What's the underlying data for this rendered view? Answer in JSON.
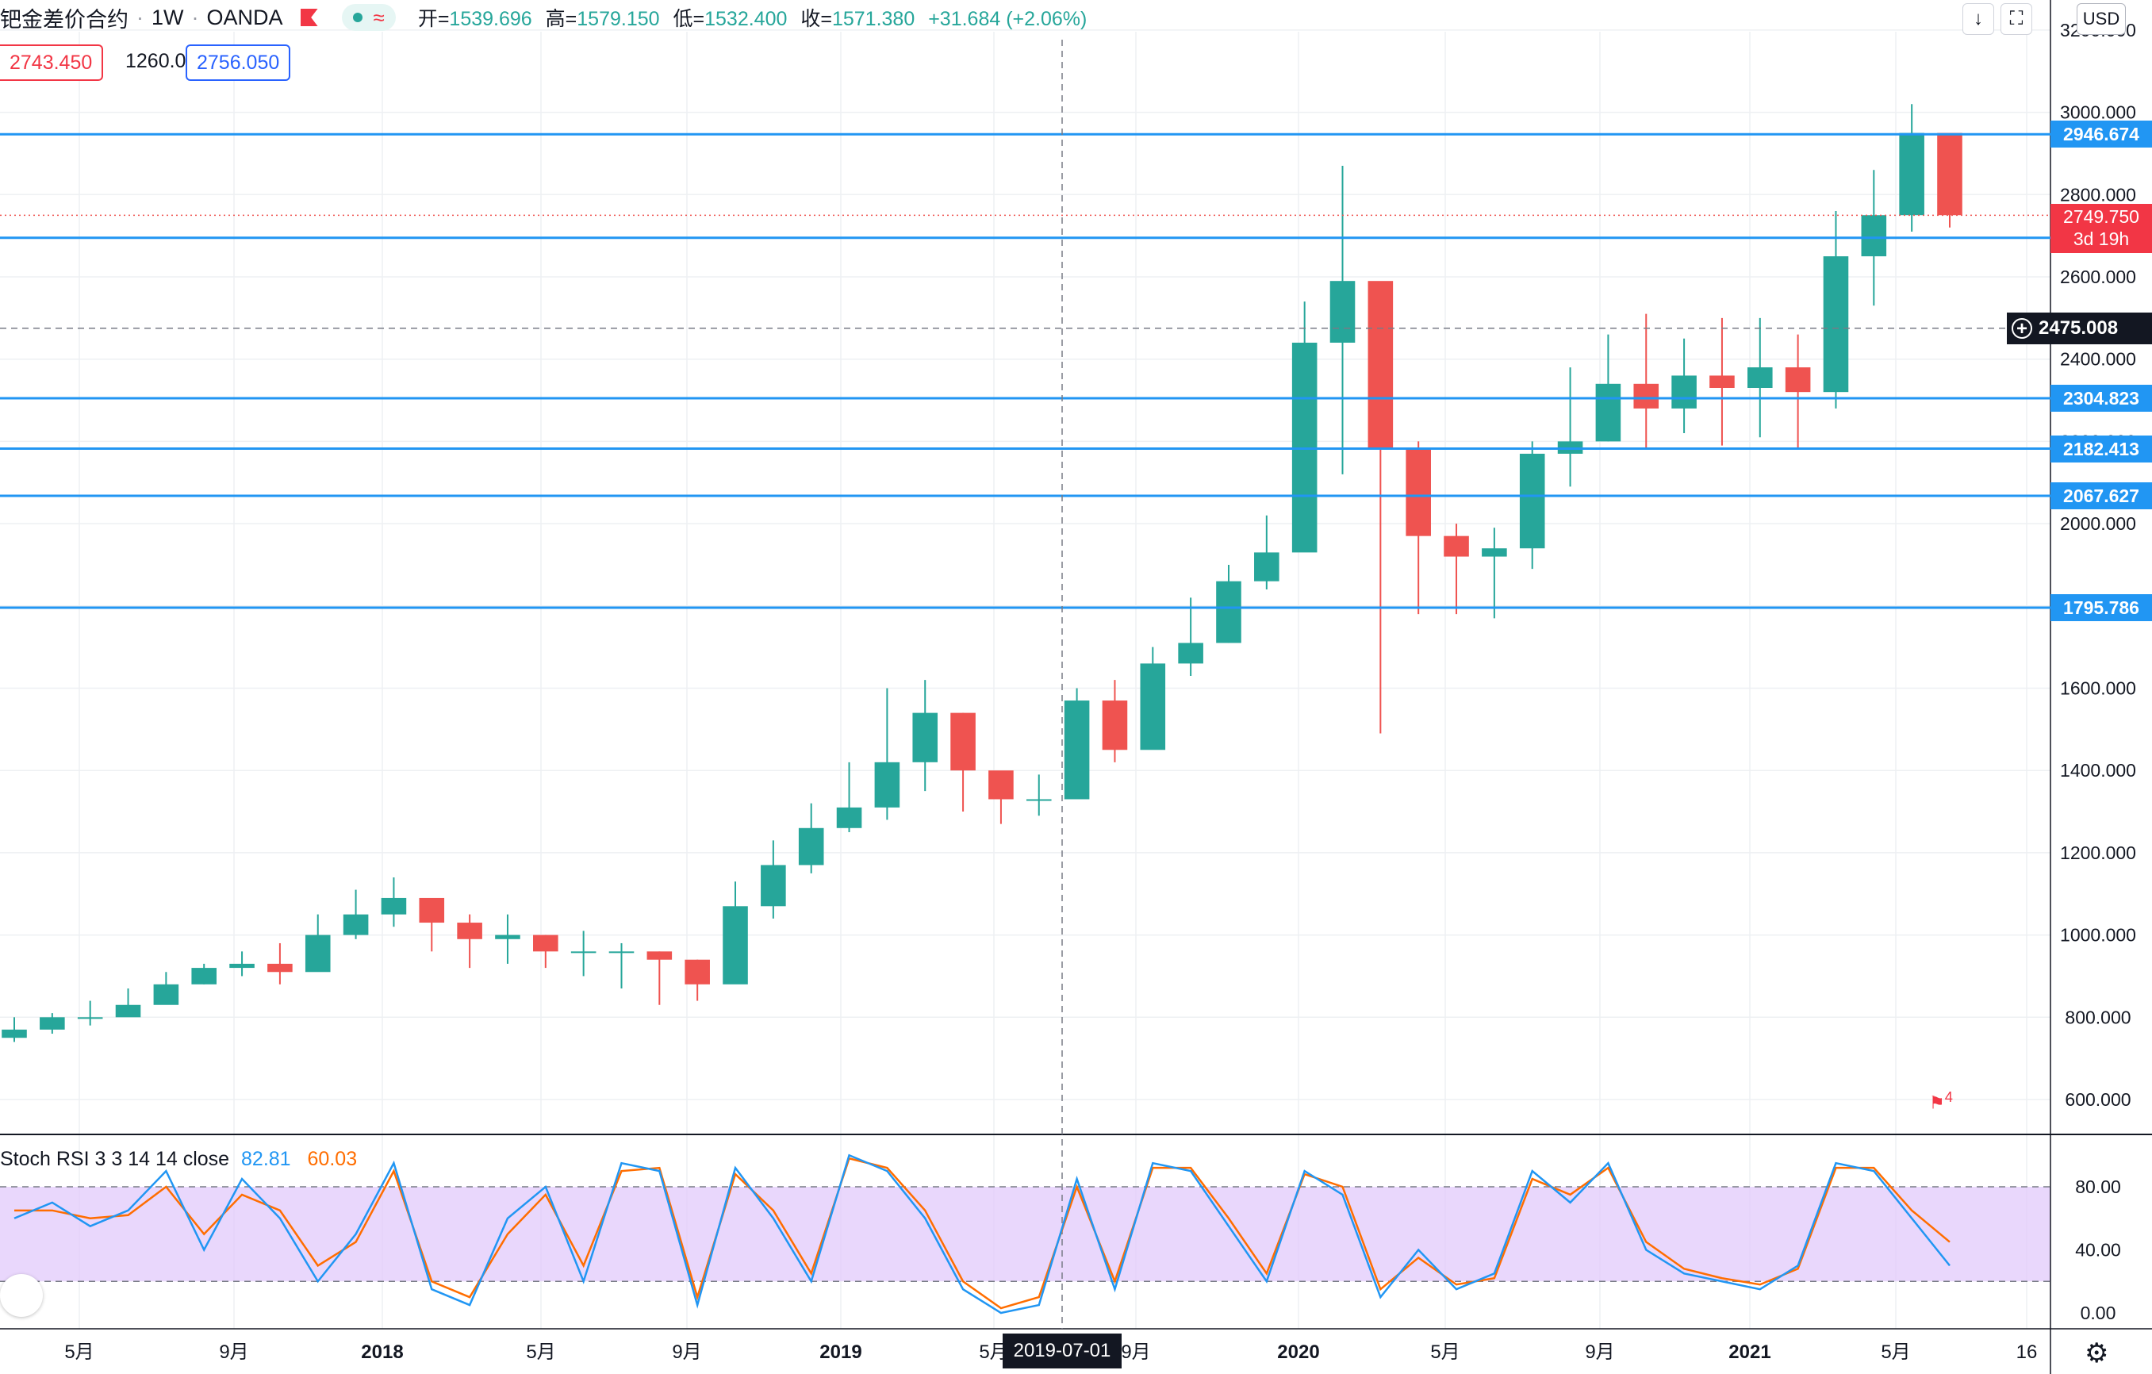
{
  "header": {
    "symbol": "钯金差价合约",
    "interval": "1W",
    "exchange": "OANDA",
    "ohlc": {
      "open_label": "开=",
      "open": "1539.696",
      "high_label": "高=",
      "high": "1579.150",
      "low_label": "低=",
      "low": "1532.400",
      "close_label": "收=",
      "close": "1571.380",
      "change": "+31.684 (+2.06%)"
    }
  },
  "quote": {
    "sell": "2743.450",
    "spread": "1260.0",
    "buy": "2756.050"
  },
  "currency": "USD",
  "horizontal_lines": [
    "2946.674",
    "2694.930",
    "2304.823",
    "2182.413",
    "2067.627",
    "1795.786"
  ],
  "current_price": {
    "price": "2749.750",
    "countdown": "3d 19h"
  },
  "crosshair": {
    "price": "2475.008",
    "date": "2019-07-01"
  },
  "event_marker": {
    "count": "4"
  },
  "stoch": {
    "title": "Stoch RSI 3 3 14 14 close",
    "k_value": "82.81",
    "d_value": "60.03",
    "ticks": [
      "80.00",
      "40.00",
      "0.00"
    ]
  },
  "colors": {
    "up": "#26a69a",
    "down": "#ef5350",
    "line": "#2196f3",
    "k": "#2196f3",
    "d": "#ff6d00",
    "band": "#e1c9fb"
  },
  "chart_data": {
    "type": "candlestick",
    "interval": "1W",
    "yaxis": {
      "range": [
        500,
        3250
      ],
      "ticks": [
        600,
        800,
        1000,
        1200,
        1400,
        1600,
        1800,
        2000,
        2200,
        2400,
        2600,
        2800,
        3000,
        3200
      ]
    },
    "xaxis_labels": [
      "5月",
      "9月",
      "2018",
      "5月",
      "9月",
      "2019",
      "5月",
      "9月",
      "2020",
      "5月",
      "9月",
      "2021",
      "5月",
      "16"
    ],
    "x": [
      "2017-03",
      "2017-04",
      "2017-05",
      "2017-06",
      "2017-07",
      "2017-08",
      "2017-09",
      "2017-10",
      "2017-11",
      "2017-12",
      "2018-01",
      "2018-02",
      "2018-03",
      "2018-04",
      "2018-05",
      "2018-06",
      "2018-07",
      "2018-08",
      "2018-09",
      "2018-10",
      "2018-11",
      "2018-12",
      "2019-01",
      "2019-02",
      "2019-03",
      "2019-04",
      "2019-05",
      "2019-06",
      "2019-07",
      "2019-08",
      "2019-09",
      "2019-10",
      "2019-11",
      "2019-12",
      "2020-01",
      "2020-02",
      "2020-03",
      "2020-04",
      "2020-05",
      "2020-06",
      "2020-07",
      "2020-08",
      "2020-09",
      "2020-10",
      "2020-11",
      "2020-12",
      "2021-01",
      "2021-02",
      "2021-03",
      "2021-04",
      "2021-05",
      "2021-06"
    ],
    "close": [
      770,
      800,
      800,
      830,
      880,
      920,
      930,
      910,
      1000,
      1050,
      1090,
      1030,
      990,
      1000,
      960,
      960,
      960,
      940,
      880,
      1070,
      1170,
      1260,
      1310,
      1420,
      1540,
      1400,
      1330,
      1330,
      1570,
      1450,
      1660,
      1710,
      1860,
      1930,
      2440,
      2590,
      2180,
      1970,
      1920,
      1940,
      2170,
      2200,
      2340,
      2280,
      2360,
      2330,
      2380,
      2320,
      2650,
      2750,
      2950,
      2750
    ],
    "high": [
      800,
      810,
      840,
      870,
      910,
      930,
      960,
      980,
      1050,
      1110,
      1140,
      1060,
      1050,
      1050,
      1000,
      1010,
      980,
      960,
      940,
      1130,
      1230,
      1320,
      1420,
      1600,
      1620,
      1540,
      1380,
      1390,
      1600,
      1620,
      1700,
      1820,
      1900,
      2020,
      2540,
      2870,
      2530,
      2200,
      2000,
      1990,
      2200,
      2380,
      2460,
      2510,
      2450,
      2500,
      2500,
      2460,
      2760,
      2860,
      3020,
      2910
    ],
    "low": [
      740,
      760,
      780,
      810,
      840,
      880,
      900,
      880,
      920,
      990,
      1020,
      960,
      920,
      930,
      920,
      900,
      870,
      830,
      840,
      940,
      1040,
      1150,
      1250,
      1280,
      1350,
      1300,
      1270,
      1290,
      1380,
      1420,
      1480,
      1630,
      1710,
      1840,
      1960,
      2120,
      1490,
      1780,
      1780,
      1770,
      1890,
      2090,
      2200,
      2180,
      2220,
      2190,
      2210,
      2180,
      2280,
      2530,
      2710,
      2720
    ],
    "stoch_k": [
      60,
      70,
      55,
      65,
      90,
      40,
      85,
      60,
      20,
      50,
      95,
      15,
      5,
      60,
      80,
      20,
      95,
      90,
      5,
      92,
      60,
      20,
      100,
      90,
      60,
      15,
      0,
      5,
      85,
      15,
      95,
      90,
      55,
      20,
      90,
      75,
      10,
      40,
      15,
      25,
      90,
      70,
      95,
      40,
      25,
      20,
      15,
      30,
      95,
      90,
      60,
      30
    ],
    "stoch_d": [
      65,
      65,
      60,
      62,
      80,
      50,
      75,
      65,
      30,
      45,
      90,
      20,
      10,
      50,
      75,
      30,
      90,
      92,
      10,
      88,
      65,
      25,
      98,
      92,
      65,
      20,
      3,
      10,
      80,
      20,
      92,
      92,
      60,
      25,
      88,
      80,
      15,
      35,
      18,
      22,
      85,
      75,
      92,
      45,
      28,
      22,
      18,
      28,
      92,
      92,
      65,
      45
    ]
  }
}
